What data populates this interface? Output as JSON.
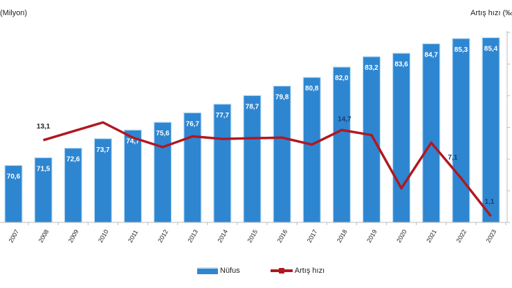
{
  "chart_data": {
    "type": "bar+line",
    "title": "",
    "left_axis_title": "(Milyon)",
    "right_axis_title": "Artış hızı (‰)",
    "categories": [
      "2007",
      "2008",
      "2009",
      "2010",
      "2011",
      "2012",
      "2013",
      "2014",
      "2015",
      "2016",
      "2017",
      "2018",
      "2019",
      "2020",
      "2021",
      "2022",
      "2023"
    ],
    "series": [
      {
        "name": "Nüfus",
        "type": "bar",
        "axis": "left",
        "color": "#2e86d1",
        "values": [
          70.6,
          71.5,
          72.6,
          73.7,
          74.7,
          75.6,
          76.7,
          77.7,
          78.7,
          79.8,
          80.8,
          82.0,
          83.2,
          83.6,
          84.7,
          85.3,
          85.4
        ],
        "labels": [
          "70,6",
          "71,5",
          "72,6",
          "73,7",
          "74,7",
          "75,6",
          "76,7",
          "77,7",
          "78,7",
          "79,8",
          "80,8",
          "82,0",
          "83,2",
          "83,6",
          "84,7",
          "85,3",
          "85,4"
        ]
      },
      {
        "name": "Artış hızı",
        "type": "line",
        "axis": "right",
        "color": "#b01820",
        "x_start_index": 1,
        "values": [
          13.1,
          14.5,
          15.9,
          13.5,
          12.0,
          13.7,
          13.3,
          13.4,
          13.5,
          12.4,
          14.7,
          13.9,
          5.5,
          12.7,
          7.1,
          1.1
        ],
        "visible_labels": {
          "2008": "13,1",
          "2018": "14,7",
          "2022": "7,1",
          "2023": "1,1"
        }
      }
    ],
    "left_ylim": [
      64,
      86
    ],
    "right_ylim": [
      0,
      30
    ],
    "right_ticks": [
      0,
      5,
      10,
      15,
      20,
      25,
      30
    ],
    "grid": false,
    "legend_position": "bottom"
  },
  "legend": {
    "bar_label": "Nüfus",
    "line_label": "Artış hızı"
  }
}
